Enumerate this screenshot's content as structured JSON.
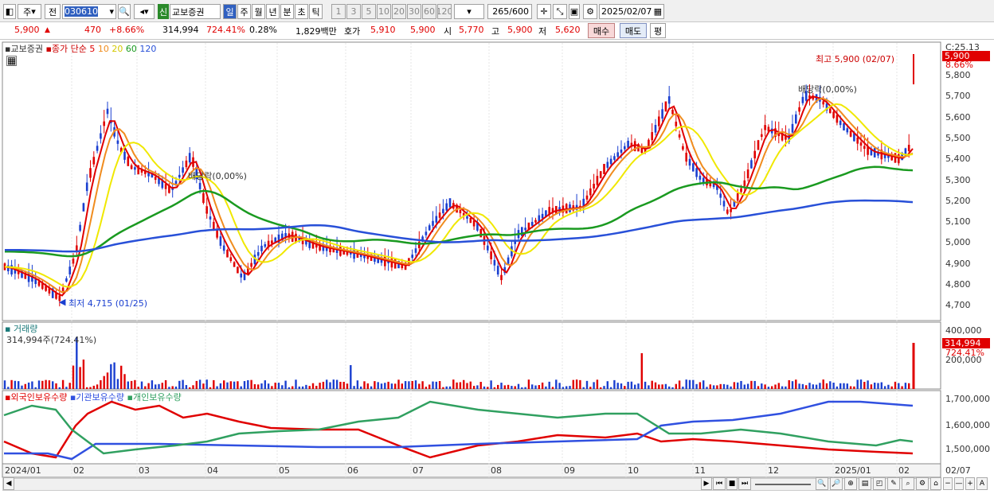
{
  "toolbar": {
    "chart_type": "주",
    "prev_label": "전",
    "stock_code": "030610",
    "stock_badge": "신",
    "stock_name": "교보증권",
    "periods": [
      "일",
      "주",
      "월",
      "년",
      "분",
      "초",
      "틱"
    ],
    "intervals": [
      "1",
      "3",
      "5",
      "10",
      "20",
      "30",
      "60",
      "120"
    ],
    "count": "265",
    "count_total": "/600",
    "date": "2025/02/07"
  },
  "quote": {
    "price": "5,900",
    "change": "470",
    "change_pct": "+8.66%",
    "volume": "314,994",
    "volume_pct": "724.41%",
    "turnover": "0.28%",
    "amount": "1,829백만",
    "ask_label": "호가",
    "ask": "5,910",
    "bid": "5,900",
    "open_label": "시",
    "open": "5,770",
    "high_label": "고",
    "high": "5,900",
    "low_label": "저",
    "low": "5,620",
    "buy_label": "매수",
    "sell_label": "매도",
    "avg_label": "평"
  },
  "colors": {
    "up": "#e00000",
    "down": "#1a3fd0",
    "ma5": "#e00000",
    "ma10": "#f08c1e",
    "ma20": "#f0e800",
    "ma60": "#1a9a20",
    "ma120": "#2850d8",
    "foreign": "#e00000",
    "inst": "#3050e0",
    "indiv": "#30a060"
  },
  "price_panel": {
    "legend_stock": "교보증권",
    "legend_close": "종가",
    "legend_simple": "단순",
    "ma": [
      "5",
      "10",
      "20",
      "60",
      "120"
    ],
    "right_top": "C:25.13",
    "price_tag": "5,900",
    "pct_tag": "8.66%",
    "y_ticks": [
      "5,800",
      "5,700",
      "5,600",
      "5,500",
      "5,400",
      "5,300",
      "5,200",
      "5,100",
      "5,000",
      "4,900",
      "4,800",
      "4,700"
    ],
    "high_annot": "최고 5,900 (02/07)",
    "low_annot": "최저 4,715 (01/25)",
    "div_annot1": "배당락(0,00%)",
    "div_annot2": "배당락(0,00%)"
  },
  "volume_panel": {
    "title": "거래량",
    "value": "314,994주(724.41%)",
    "y_ticks": [
      "400,000",
      "200,000"
    ],
    "tag": "314,994",
    "tag_pct": "724.41%"
  },
  "holder_panel": {
    "legends": [
      "외국인보유수량",
      "기관보유수량",
      "개인보유수량"
    ],
    "y_ticks": [
      "1,700,000",
      "1,600,000",
      "1,500,000"
    ]
  },
  "x_axis": {
    "labels": [
      "2024/01",
      "02",
      "03",
      "04",
      "05",
      "06",
      "07",
      "08",
      "09",
      "10",
      "11",
      "12",
      "2025/01",
      "02"
    ],
    "right_label": "02/07"
  }
}
